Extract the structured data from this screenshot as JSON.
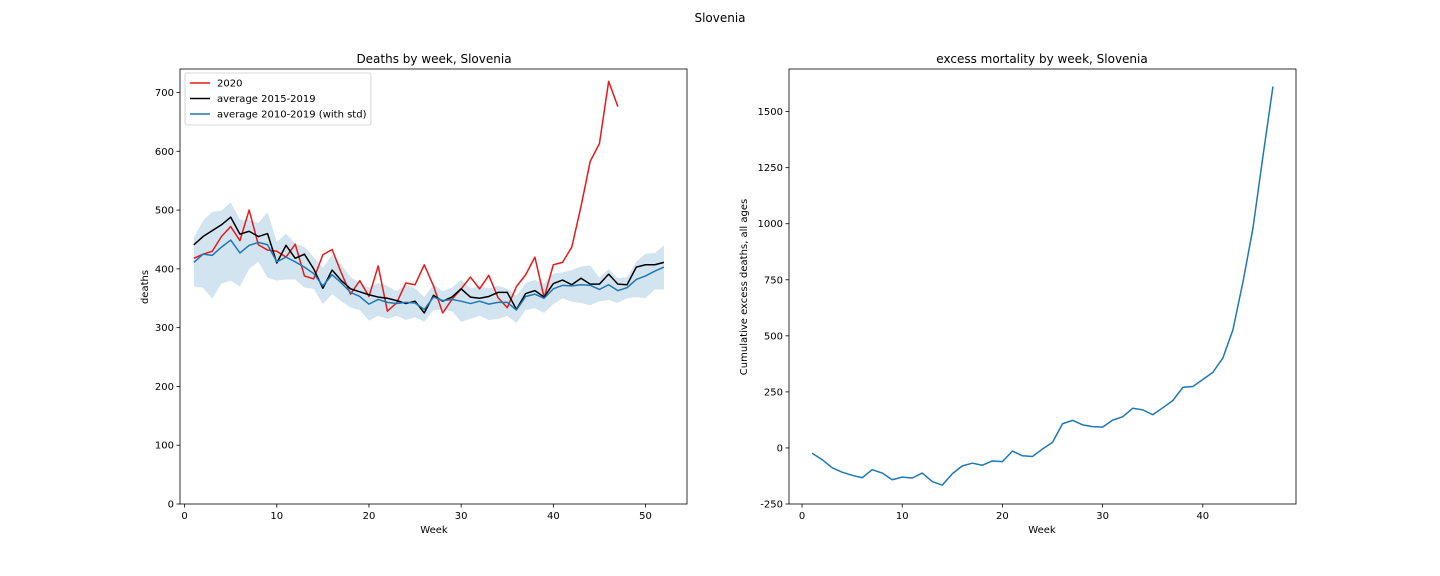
{
  "suptitle": "Slovenia",
  "chart_data": [
    {
      "type": "line",
      "title": "Deaths by week, Slovenia",
      "xlabel": "Week",
      "ylabel": "deaths",
      "xlim": [
        -0.5,
        54.5
      ],
      "ylim": [
        0,
        740
      ],
      "xticks": [
        0,
        10,
        20,
        30,
        40,
        50
      ],
      "yticks": [
        0,
        100,
        200,
        300,
        400,
        500,
        600,
        700
      ],
      "grid": false,
      "legend_position": "upper-left",
      "legend": [
        "2020",
        "average 2015-2019",
        "average 2010-2019 (with std)"
      ],
      "series": [
        {
          "name": "2020",
          "color": "#e41a1c",
          "x": [
            1,
            2,
            3,
            4,
            5,
            6,
            7,
            8,
            9,
            10,
            11,
            12,
            13,
            14,
            15,
            16,
            17,
            18,
            19,
            20,
            21,
            22,
            23,
            24,
            25,
            26,
            27,
            28,
            29,
            30,
            31,
            32,
            33,
            34,
            35,
            36,
            37,
            38,
            39,
            40,
            41,
            42,
            43,
            44,
            45,
            46,
            47
          ],
          "values": [
            418,
            425,
            430,
            455,
            472,
            448,
            500,
            441,
            432,
            430,
            420,
            442,
            388,
            383,
            424,
            433,
            393,
            357,
            380,
            353,
            405,
            328,
            342,
            376,
            373,
            407,
            371,
            325,
            348,
            366,
            386,
            366,
            389,
            351,
            334,
            370,
            390,
            420,
            351,
            407,
            411,
            437,
            506,
            583,
            613,
            719,
            676
          ]
        },
        {
          "name": "average 2015-2019",
          "color": "#000000",
          "x": [
            1,
            2,
            3,
            4,
            5,
            6,
            7,
            8,
            9,
            10,
            11,
            12,
            13,
            14,
            15,
            16,
            17,
            18,
            19,
            20,
            21,
            22,
            23,
            24,
            25,
            26,
            27,
            28,
            29,
            30,
            31,
            32,
            33,
            34,
            35,
            36,
            37,
            38,
            39,
            40,
            41,
            42,
            43,
            44,
            45,
            46,
            47,
            48,
            49,
            50,
            51,
            52
          ],
          "values": [
            441,
            455,
            465,
            475,
            488,
            459,
            464,
            455,
            460,
            410,
            440,
            418,
            425,
            400,
            367,
            398,
            380,
            366,
            361,
            356,
            352,
            350,
            346,
            341,
            345,
            325,
            355,
            345,
            352,
            366,
            352,
            350,
            353,
            360,
            360,
            331,
            358,
            363,
            352,
            375,
            381,
            373,
            384,
            374,
            374,
            391,
            374,
            373,
            403,
            407,
            407,
            411
          ]
        },
        {
          "name": "average 2010-2019 (with std)",
          "color": "#1f77b4",
          "band_color": "#1f77b4",
          "x": [
            1,
            2,
            3,
            4,
            5,
            6,
            7,
            8,
            9,
            10,
            11,
            12,
            13,
            14,
            15,
            16,
            17,
            18,
            19,
            20,
            21,
            22,
            23,
            24,
            25,
            26,
            27,
            28,
            29,
            30,
            31,
            32,
            33,
            34,
            35,
            36,
            37,
            38,
            39,
            40,
            41,
            42,
            43,
            44,
            45,
            46,
            47,
            48,
            49,
            50,
            51,
            52
          ],
          "values": [
            411,
            425,
            423,
            437,
            449,
            427,
            440,
            445,
            441,
            412,
            420,
            412,
            403,
            392,
            371,
            390,
            376,
            360,
            353,
            340,
            348,
            343,
            341,
            343,
            342,
            331,
            352,
            346,
            348,
            345,
            341,
            345,
            340,
            343,
            343,
            330,
            353,
            357,
            350,
            366,
            372,
            371,
            373,
            372,
            365,
            373,
            363,
            368,
            382,
            388,
            396,
            403
          ],
          "lower": [
            370,
            368,
            349,
            375,
            380,
            370,
            400,
            412,
            385,
            380,
            382,
            382,
            368,
            366,
            340,
            357,
            345,
            334,
            330,
            312,
            320,
            315,
            320,
            313,
            318,
            310,
            330,
            330,
            328,
            310,
            315,
            320,
            313,
            315,
            320,
            308,
            330,
            333,
            325,
            340,
            350,
            344,
            342,
            338,
            345,
            347,
            342,
            350,
            352,
            350,
            365,
            365
          ],
          "upper": [
            453,
            482,
            497,
            499,
            513,
            484,
            483,
            478,
            497,
            446,
            460,
            443,
            437,
            420,
            402,
            424,
            407,
            386,
            376,
            368,
            376,
            371,
            362,
            373,
            367,
            352,
            374,
            362,
            368,
            381,
            367,
            370,
            367,
            371,
            366,
            354,
            376,
            381,
            375,
            392,
            394,
            398,
            404,
            406,
            385,
            400,
            384,
            386,
            412,
            426,
            427,
            440
          ]
        }
      ]
    },
    {
      "type": "line",
      "title": "excess mortality by week, Slovenia",
      "xlabel": "Week",
      "ylabel": "Cumulative excess deaths, all ages",
      "xlim": [
        -1.3,
        49.3
      ],
      "ylim": [
        -250,
        1690
      ],
      "xticks": [
        0,
        10,
        20,
        30,
        40
      ],
      "yticks": [
        -250,
        0,
        250,
        500,
        750,
        1000,
        1250,
        1500
      ],
      "grid": false,
      "series": [
        {
          "color": "#1f77b4",
          "x": [
            1,
            2,
            3,
            4,
            5,
            6,
            7,
            8,
            9,
            10,
            11,
            12,
            13,
            14,
            15,
            16,
            17,
            18,
            19,
            20,
            21,
            22,
            23,
            24,
            25,
            26,
            27,
            28,
            29,
            30,
            31,
            32,
            33,
            34,
            35,
            36,
            37,
            38,
            39,
            40,
            41,
            42,
            43,
            44,
            45,
            46,
            47
          ],
          "values": [
            -23,
            -52,
            -88,
            -108,
            -122,
            -133,
            -97,
            -112,
            -142,
            -130,
            -134,
            -112,
            -150,
            -166,
            -115,
            -80,
            -68,
            -77,
            -58,
            -61,
            -14,
            -35,
            -38,
            -5,
            25,
            108,
            123,
            103,
            95,
            93,
            124,
            139,
            177,
            170,
            148,
            179,
            211,
            270,
            274,
            305,
            337,
            401,
            526,
            739,
            979,
            1300,
            1612
          ]
        }
      ]
    }
  ]
}
